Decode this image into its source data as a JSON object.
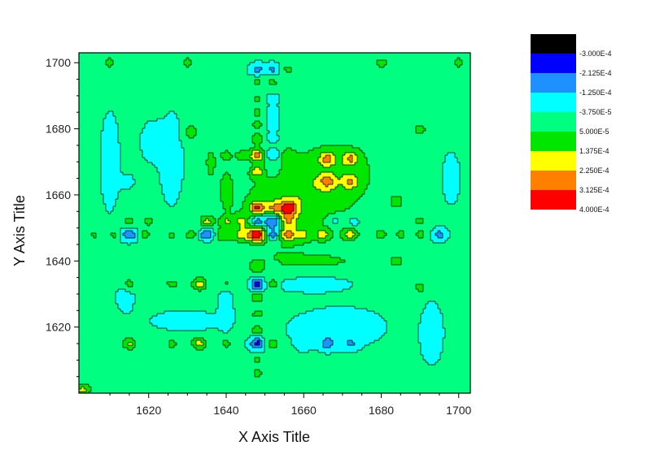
{
  "chart_data": {
    "type": "heatmap",
    "subtype": "filled-contour",
    "xlabel": "X Axis Title",
    "ylabel": "Y Axis Title",
    "xlim": [
      1602,
      1703
    ],
    "ylim": [
      1600,
      1703
    ],
    "xticks": [
      1620,
      1640,
      1660,
      1680,
      1700
    ],
    "yticks": [
      1620,
      1640,
      1660,
      1680,
      1700
    ],
    "grid": false,
    "legend_position": "right",
    "levels": [
      {
        "label": "-3.000E-4",
        "color": "#000000"
      },
      {
        "label": "-2.125E-4",
        "color": "#0000ff"
      },
      {
        "label": "-1.250E-4",
        "color": "#1e90ff"
      },
      {
        "label": "-3.750E-5",
        "color": "#00ffff"
      },
      {
        "label": "5.000E-5",
        "color": "#00ff80"
      },
      {
        "label": "1.375E-4",
        "color": "#00e600"
      },
      {
        "label": "2.250E-4",
        "color": "#ffff00"
      },
      {
        "label": "3.125E-4",
        "color": "#ff8000"
      },
      {
        "label": "4.000E-4",
        "color": "#ff0000"
      }
    ],
    "background_value": 2e-05,
    "features": [
      {
        "x": 1652,
        "y": 1650,
        "sx": 12,
        "sy": 12,
        "v": 8e-05
      },
      {
        "x": 1662,
        "y": 1662,
        "sx": 10,
        "sy": 7,
        "v": 9e-05
      },
      {
        "x": 1670,
        "y": 1670,
        "sx": 9,
        "sy": 8,
        "v": 7e-05
      },
      {
        "x": 1648,
        "y": 1648,
        "sx": 1.6,
        "sy": 1.6,
        "v": 0.00036
      },
      {
        "x": 1652,
        "y": 1652,
        "sx": 1.5,
        "sy": 1.5,
        "v": -0.00028
      },
      {
        "x": 1648,
        "y": 1652,
        "sx": 1.5,
        "sy": 1.5,
        "v": -0.00022
      },
      {
        "x": 1652,
        "y": 1648,
        "sx": 1.5,
        "sy": 1.5,
        "v": -0.00024
      },
      {
        "x": 1656,
        "y": 1656,
        "sx": 1.7,
        "sy": 1.7,
        "v": 0.0003
      },
      {
        "x": 1656,
        "y": 1648,
        "sx": 1.6,
        "sy": 1.4,
        "v": 0.00022
      },
      {
        "x": 1644,
        "y": 1648,
        "sx": 1.4,
        "sy": 1.4,
        "v": 0.00014
      },
      {
        "x": 1648,
        "y": 1656,
        "sx": 1.4,
        "sy": 1.4,
        "v": 0.00027
      },
      {
        "x": 1652,
        "y": 1656,
        "sx": 1.4,
        "sy": 1.4,
        "v": 0.00014
      },
      {
        "x": 1644,
        "y": 1652,
        "sx": 1.4,
        "sy": 1.4,
        "v": 0.00012
      },
      {
        "x": 1656,
        "y": 1652,
        "sx": 1.4,
        "sy": 1.4,
        "v": 0.00016
      },
      {
        "x": 1648,
        "y": 1644,
        "sx": 1.3,
        "sy": 1.3,
        "v": -8e-05
      },
      {
        "x": 1644,
        "y": 1644,
        "sx": 1.3,
        "sy": 1.3,
        "v": -6e-05
      },
      {
        "x": 1660,
        "y": 1648,
        "sx": 1.3,
        "sy": 1.3,
        "v": 0.0001
      },
      {
        "x": 1648,
        "y": 1672,
        "sx": 1.4,
        "sy": 1.4,
        "v": 0.00024
      },
      {
        "x": 1652,
        "y": 1672,
        "sx": 1.4,
        "sy": 1.4,
        "v": -0.00014
      },
      {
        "x": 1648,
        "y": 1667,
        "sx": 1.2,
        "sy": 1.2,
        "v": 0.00016
      },
      {
        "x": 1648,
        "y": 1677,
        "sx": 1.2,
        "sy": 1.2,
        "v": 0.00014
      },
      {
        "x": 1652,
        "y": 1677,
        "sx": 1.2,
        "sy": 1.2,
        "v": -8e-05
      },
      {
        "x": 1652,
        "y": 1681,
        "sx": 1.2,
        "sy": 1.2,
        "v": -9e-05
      },
      {
        "x": 1648,
        "y": 1681,
        "sx": 1.2,
        "sy": 1.2,
        "v": 0.0001
      },
      {
        "x": 1648,
        "y": 1685,
        "sx": 1.1,
        "sy": 1.1,
        "v": 0.0001
      },
      {
        "x": 1652,
        "y": 1685,
        "sx": 1.1,
        "sy": 1.1,
        "v": -8e-05
      },
      {
        "x": 1652,
        "y": 1689,
        "sx": 1.1,
        "sy": 1.1,
        "v": -6e-05
      },
      {
        "x": 1648,
        "y": 1689,
        "sx": 1.1,
        "sy": 1.1,
        "v": 9e-05
      },
      {
        "x": 1652,
        "y": 1698,
        "sx": 1.2,
        "sy": 1.2,
        "v": -0.00012
      },
      {
        "x": 1648,
        "y": 1698,
        "sx": 1.2,
        "sy": 1.2,
        "v": -0.00014
      },
      {
        "x": 1656,
        "y": 1698,
        "sx": 1.1,
        "sy": 1.1,
        "v": 0.0001
      },
      {
        "x": 1652,
        "y": 1694,
        "sx": 1.1,
        "sy": 1.1,
        "v": 0.0001
      },
      {
        "x": 1648,
        "y": 1694,
        "sx": 1.1,
        "sy": 1.1,
        "v": 0.0001
      },
      {
        "x": 1656,
        "y": 1672,
        "sx": 1.2,
        "sy": 1.2,
        "v": 0.0001
      },
      {
        "x": 1652,
        "y": 1667,
        "sx": 1.2,
        "sy": 1.2,
        "v": -6e-05
      },
      {
        "x": 1644,
        "y": 1672,
        "sx": 1.2,
        "sy": 1.2,
        "v": 0.0001
      },
      {
        "x": 1640,
        "y": 1672,
        "sx": 1.2,
        "sy": 1.2,
        "v": 0.0001
      },
      {
        "x": 1648,
        "y": 1633,
        "sx": 1.3,
        "sy": 1.3,
        "v": -0.00024
      },
      {
        "x": 1648,
        "y": 1629,
        "sx": 1.2,
        "sy": 1.2,
        "v": 0.00012
      },
      {
        "x": 1648,
        "y": 1638,
        "sx": 1.2,
        "sy": 1.2,
        "v": 0.00012
      },
      {
        "x": 1652,
        "y": 1638,
        "sx": 1.2,
        "sy": 1.2,
        "v": -6e-05
      },
      {
        "x": 1652,
        "y": 1633,
        "sx": 1.2,
        "sy": 1.2,
        "v": 0.00012
      },
      {
        "x": 1648,
        "y": 1615,
        "sx": 1.3,
        "sy": 1.3,
        "v": -0.00022
      },
      {
        "x": 1652,
        "y": 1615,
        "sx": 1.2,
        "sy": 1.2,
        "v": 0.00014
      },
      {
        "x": 1648,
        "y": 1619,
        "sx": 1.2,
        "sy": 1.2,
        "v": 0.00012
      },
      {
        "x": 1648,
        "y": 1610,
        "sx": 1.2,
        "sy": 1.2,
        "v": 0.0001
      },
      {
        "x": 1648,
        "y": 1624,
        "sx": 1.2,
        "sy": 1.2,
        "v": 0.0001
      },
      {
        "x": 1648,
        "y": 1606,
        "sx": 1.2,
        "sy": 1.2,
        "v": 0.0001
      },
      {
        "x": 1635,
        "y": 1648,
        "sx": 1.4,
        "sy": 1.3,
        "v": -0.00022
      },
      {
        "x": 1631,
        "y": 1648,
        "sx": 1.2,
        "sy": 1.2,
        "v": 0.0001
      },
      {
        "x": 1639,
        "y": 1648,
        "sx": 1.2,
        "sy": 1.2,
        "v": 0.00012
      },
      {
        "x": 1635,
        "y": 1652,
        "sx": 1.2,
        "sy": 1.2,
        "v": 0.00016
      },
      {
        "x": 1640,
        "y": 1652,
        "sx": 1.2,
        "sy": 1.2,
        "v": 0.00012
      },
      {
        "x": 1615,
        "y": 1648,
        "sx": 1.4,
        "sy": 1.3,
        "v": -0.00018
      },
      {
        "x": 1611,
        "y": 1648,
        "sx": 1.1,
        "sy": 1.1,
        "v": 0.0001
      },
      {
        "x": 1619,
        "y": 1648,
        "sx": 1.2,
        "sy": 1.2,
        "v": 0.0001
      },
      {
        "x": 1615,
        "y": 1652,
        "sx": 1.2,
        "sy": 1.2,
        "v": 0.00012
      },
      {
        "x": 1620,
        "y": 1652,
        "sx": 1.2,
        "sy": 1.2,
        "v": 0.0001
      },
      {
        "x": 1606,
        "y": 1648,
        "sx": 1.1,
        "sy": 1.1,
        "v": 9e-05
      },
      {
        "x": 1626,
        "y": 1648,
        "sx": 1.1,
        "sy": 1.1,
        "v": 9e-05
      },
      {
        "x": 1672,
        "y": 1648,
        "sx": 1.4,
        "sy": 1.2,
        "v": 0.00018
      },
      {
        "x": 1665,
        "y": 1648,
        "sx": 1.4,
        "sy": 1.2,
        "v": 0.00016
      },
      {
        "x": 1668,
        "y": 1652,
        "sx": 1.3,
        "sy": 1.3,
        "v": -0.0001
      },
      {
        "x": 1673,
        "y": 1652,
        "sx": 1.2,
        "sy": 1.2,
        "v": -8e-05
      },
      {
        "x": 1680,
        "y": 1648,
        "sx": 1.2,
        "sy": 1.2,
        "v": 0.0001
      },
      {
        "x": 1685,
        "y": 1648,
        "sx": 1.2,
        "sy": 1.2,
        "v": 0.0001
      },
      {
        "x": 1690,
        "y": 1648,
        "sx": 1.2,
        "sy": 1.2,
        "v": 0.0001
      },
      {
        "x": 1695,
        "y": 1648,
        "sx": 1.2,
        "sy": 1.2,
        "v": -0.00014
      },
      {
        "x": 1690,
        "y": 1652,
        "sx": 1.1,
        "sy": 1.1,
        "v": 0.0001
      },
      {
        "x": 1666,
        "y": 1671,
        "sx": 1.4,
        "sy": 1.4,
        "v": 0.00018
      },
      {
        "x": 1672,
        "y": 1671,
        "sx": 1.4,
        "sy": 1.4,
        "v": 0.00018
      },
      {
        "x": 1666,
        "y": 1664,
        "sx": 1.4,
        "sy": 1.4,
        "v": 0.00016
      },
      {
        "x": 1672,
        "y": 1664,
        "sx": 1.4,
        "sy": 1.4,
        "v": 0.00016
      },
      {
        "x": 1672,
        "y": 1615,
        "sx": 1.3,
        "sy": 1.3,
        "v": -0.0001
      },
      {
        "x": 1666,
        "y": 1615,
        "sx": 1.3,
        "sy": 1.3,
        "v": -0.00012
      },
      {
        "x": 1660,
        "y": 1615,
        "sx": 1.2,
        "sy": 1.2,
        "v": -8e-05
      },
      {
        "x": 1633,
        "y": 1633,
        "sx": 1.3,
        "sy": 1.3,
        "v": 0.0002
      },
      {
        "x": 1633,
        "y": 1615,
        "sx": 1.3,
        "sy": 1.3,
        "v": 0.0002
      },
      {
        "x": 1615,
        "y": 1615,
        "sx": 1.3,
        "sy": 1.3,
        "v": 0.00018
      },
      {
        "x": 1615,
        "y": 1633,
        "sx": 1.3,
        "sy": 1.3,
        "v": 0.00012
      },
      {
        "x": 1626,
        "y": 1633,
        "sx": 1.3,
        "sy": 1.2,
        "v": 0.0001
      },
      {
        "x": 1640,
        "y": 1633,
        "sx": 1.2,
        "sy": 1.2,
        "v": 0.0001
      },
      {
        "x": 1626,
        "y": 1615,
        "sx": 1.3,
        "sy": 1.2,
        "v": 0.0001
      },
      {
        "x": 1640,
        "y": 1615,
        "sx": 1.2,
        "sy": 1.2,
        "v": 0.0001
      },
      {
        "x": 1603,
        "y": 1601,
        "sx": 1.5,
        "sy": 1.5,
        "v": 0.00018
      },
      {
        "x": 1660,
        "y": 1633,
        "sx": 8,
        "sy": 2,
        "v": -7e-05
      },
      {
        "x": 1668,
        "y": 1620,
        "sx": 8,
        "sy": 4,
        "v": -6e-05
      },
      {
        "x": 1665,
        "y": 1640,
        "sx": 8,
        "sy": 1.5,
        "v": 7e-05
      },
      {
        "x": 1610,
        "y": 1670,
        "sx": 1.5,
        "sy": 9,
        "v": -6e-05
      },
      {
        "x": 1626,
        "y": 1670,
        "sx": 2,
        "sy": 9,
        "v": -6e-05
      },
      {
        "x": 1621,
        "y": 1676,
        "sx": 2,
        "sy": 4,
        "v": -5e-05
      },
      {
        "x": 1614,
        "y": 1664,
        "sx": 1.2,
        "sy": 1.2,
        "v": -0.0001
      },
      {
        "x": 1631,
        "y": 1679,
        "sx": 1.5,
        "sy": 2.5,
        "v": 0.0001
      },
      {
        "x": 1636,
        "y": 1670,
        "sx": 1.2,
        "sy": 4,
        "v": 9e-05
      },
      {
        "x": 1640,
        "y": 1662,
        "sx": 1.2,
        "sy": 4,
        "v": 9e-05
      },
      {
        "x": 1620,
        "y": 1690,
        "sx": 5,
        "sy": 1.5,
        "v": 7e-05
      },
      {
        "x": 1614,
        "y": 1629,
        "sx": 1.5,
        "sy": 3,
        "v": -5e-05
      },
      {
        "x": 1640,
        "y": 1628,
        "sx": 1.5,
        "sy": 6,
        "v": -5e-05
      },
      {
        "x": 1630,
        "y": 1622,
        "sx": 6,
        "sy": 2,
        "v": -5e-05
      },
      {
        "x": 1693,
        "y": 1618,
        "sx": 2,
        "sy": 6,
        "v": -5e-05
      },
      {
        "x": 1698,
        "y": 1665,
        "sx": 1.5,
        "sy": 5,
        "v": -5e-05
      },
      {
        "x": 1696,
        "y": 1690,
        "sx": 2,
        "sy": 4,
        "v": 7e-05
      },
      {
        "x": 1690,
        "y": 1632,
        "sx": 1.5,
        "sy": 1.5,
        "v": 0.0001
      },
      {
        "x": 1684,
        "y": 1640,
        "sx": 1.5,
        "sy": 1.5,
        "v": 0.0001
      },
      {
        "x": 1684,
        "y": 1658,
        "sx": 1.5,
        "sy": 1.5,
        "v": 0.0001
      },
      {
        "x": 1690,
        "y": 1680,
        "sx": 1.5,
        "sy": 1.5,
        "v": 0.0001
      },
      {
        "x": 1700,
        "y": 1700,
        "sx": 1.5,
        "sy": 1.5,
        "v": 0.0001
      },
      {
        "x": 1610,
        "y": 1700,
        "sx": 1.5,
        "sy": 1.5,
        "v": 0.0001
      },
      {
        "x": 1630,
        "y": 1700,
        "sx": 1.5,
        "sy": 1.5,
        "v": 0.0001
      },
      {
        "x": 1680,
        "y": 1700,
        "sx": 1.5,
        "sy": 1.5,
        "v": 0.0001
      }
    ]
  }
}
